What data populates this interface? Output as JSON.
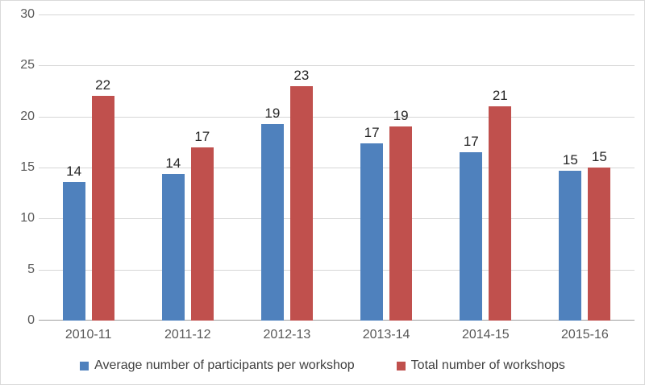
{
  "chart_data": {
    "type": "bar",
    "title": "",
    "xlabel": "",
    "ylabel": "",
    "categories": [
      "2010-11",
      "2011-12",
      "2012-13",
      "2013-14",
      "2014-15",
      "2015-16"
    ],
    "series": [
      {
        "name": "Average number of participants per workshop",
        "color": "#4F81BD",
        "values": [
          13.6,
          14.4,
          19.3,
          17.4,
          16.5,
          14.7
        ],
        "data_labels": [
          "14",
          "14",
          "19",
          "17",
          "17",
          "15"
        ]
      },
      {
        "name": "Total number of workshops",
        "color": "#C0504D",
        "values": [
          22,
          17,
          23,
          19,
          21,
          15
        ],
        "data_labels": [
          "22",
          "17",
          "23",
          "19",
          "21",
          "15"
        ]
      }
    ],
    "ylim": [
      0,
      30
    ],
    "ytick_step": 5,
    "ytick_labels": [
      "0",
      "5",
      "10",
      "15",
      "20",
      "25",
      "30"
    ],
    "grid": true,
    "legend_position": "bottom",
    "colors": {
      "background": "#FFFFFF",
      "frame_border": "#D9D9D9",
      "gridline": "#D6D6D6",
      "axis_line": "#9E9E9E",
      "tick_text": "#595959",
      "data_label_text": "#262626",
      "legend_text": "#404040"
    }
  }
}
